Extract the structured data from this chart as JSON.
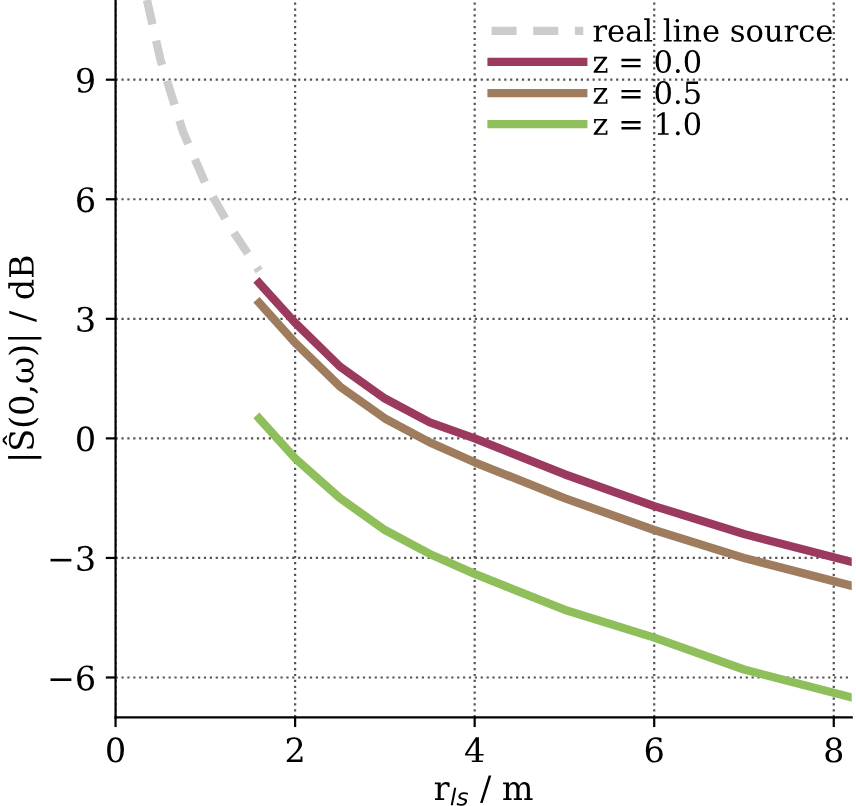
{
  "chart_data": {
    "type": "line",
    "xlabel": "r$_{ls}$ / m",
    "ylabel": "|Ŝ(0,ω)| / dB",
    "xlim": [
      0,
      8.2
    ],
    "ylim": [
      -7,
      11
    ],
    "xticks": [
      0,
      2,
      4,
      6,
      8
    ],
    "yticks": [
      {
        "value": -6,
        "label": "−6"
      },
      {
        "value": -3,
        "label": "−3"
      },
      0,
      3,
      6,
      9
    ],
    "grid": true,
    "legend": "top right",
    "series": [
      {
        "name": "real line source",
        "color": "#cccccc",
        "line_style": "dashed",
        "x": [
          0.35,
          0.5,
          0.75,
          1.0,
          1.25,
          1.6
        ],
        "values": [
          11,
          9.5,
          7.7,
          6.4,
          5.4,
          4.2
        ]
      },
      {
        "name": "z = 0.0",
        "color": "#9b3a5e",
        "line_style": "solid",
        "x": [
          1.6,
          2,
          2.5,
          3,
          3.5,
          4,
          5,
          6,
          7,
          8.2
        ],
        "values": [
          3.9,
          2.9,
          1.8,
          1.0,
          0.4,
          0.0,
          -0.9,
          -1.7,
          -2.4,
          -3.1
        ]
      },
      {
        "name": "z = 0.5",
        "color": "#a07c5e",
        "line_style": "solid",
        "x": [
          1.6,
          2,
          2.5,
          3,
          3.5,
          4,
          5,
          6,
          7,
          8.2
        ],
        "values": [
          3.4,
          2.4,
          1.3,
          0.5,
          -0.1,
          -0.6,
          -1.5,
          -2.3,
          -3.0,
          -3.7
        ]
      },
      {
        "name": "z = 1.0",
        "color": "#8fbf5a",
        "line_style": "solid",
        "x": [
          1.6,
          2,
          2.5,
          3,
          3.5,
          4,
          5,
          6,
          7,
          8.2
        ],
        "values": [
          0.5,
          -0.5,
          -1.5,
          -2.3,
          -2.9,
          -3.4,
          -4.3,
          -5.0,
          -5.8,
          -6.5
        ]
      }
    ]
  }
}
